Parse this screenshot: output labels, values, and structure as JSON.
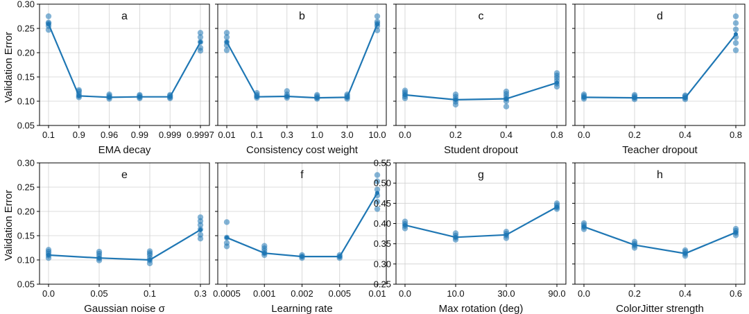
{
  "figure": {
    "shared_ylabel": "Validation Error",
    "series_color": "#1f77b4",
    "point_color": "#1f77b4"
  },
  "chart_data": [
    {
      "panel": "a",
      "type": "line",
      "xlabel": "EMA decay",
      "categories": [
        "0.1",
        "0.9",
        "0.96",
        "0.99",
        "0.999",
        "0.9997"
      ],
      "values": [
        0.259,
        0.111,
        0.108,
        0.109,
        0.109,
        0.222
      ],
      "runs": [
        [
          0.247,
          0.255,
          0.26,
          0.262,
          0.275
        ],
        [
          0.108,
          0.111,
          0.115,
          0.12,
          0.123
        ],
        [
          0.105,
          0.108,
          0.111,
          0.114
        ],
        [
          0.106,
          0.108,
          0.111,
          0.113
        ],
        [
          0.106,
          0.108,
          0.111,
          0.113
        ],
        [
          0.204,
          0.21,
          0.222,
          0.232,
          0.241
        ]
      ],
      "ylim": [
        0.05,
        0.3
      ],
      "yticks": [
        "0.05",
        "0.10",
        "0.15",
        "0.20",
        "0.25",
        "0.30"
      ],
      "grid": true
    },
    {
      "panel": "b",
      "type": "line",
      "xlabel": "Consistency cost weight",
      "categories": [
        "0.01",
        "0.1",
        "0.3",
        "1.0",
        "3.0",
        "10.0"
      ],
      "values": [
        0.222,
        0.109,
        0.11,
        0.107,
        0.108,
        0.259
      ],
      "runs": [
        [
          0.205,
          0.215,
          0.222,
          0.232,
          0.241
        ],
        [
          0.107,
          0.11,
          0.113,
          0.117
        ],
        [
          0.107,
          0.11,
          0.114,
          0.121
        ],
        [
          0.105,
          0.107,
          0.11,
          0.113
        ],
        [
          0.105,
          0.108,
          0.111,
          0.114
        ],
        [
          0.246,
          0.255,
          0.26,
          0.264,
          0.275
        ]
      ],
      "ylim": [
        0.05,
        0.3
      ],
      "yticks": [],
      "grid": true
    },
    {
      "panel": "c",
      "type": "line",
      "xlabel": "Student dropout",
      "categories": [
        "0.0",
        "0.2",
        "0.4",
        "0.8"
      ],
      "values": [
        0.113,
        0.103,
        0.105,
        0.138
      ],
      "runs": [
        [
          0.106,
          0.11,
          0.114,
          0.118,
          0.122
        ],
        [
          0.093,
          0.099,
          0.104,
          0.109,
          0.114
        ],
        [
          0.089,
          0.1,
          0.105,
          0.11,
          0.115,
          0.12
        ],
        [
          0.13,
          0.136,
          0.142,
          0.148,
          0.153,
          0.158
        ]
      ],
      "ylim": [
        0.05,
        0.3
      ],
      "yticks": [],
      "grid": true
    },
    {
      "panel": "d",
      "type": "line",
      "xlabel": "Teacher dropout",
      "categories": [
        "0.0",
        "0.2",
        "0.4",
        "0.8"
      ],
      "values": [
        0.108,
        0.107,
        0.107,
        0.238
      ],
      "runs": [
        [
          0.105,
          0.108,
          0.111,
          0.114
        ],
        [
          0.104,
          0.107,
          0.11,
          0.113
        ],
        [
          0.104,
          0.107,
          0.11,
          0.112
        ],
        [
          0.205,
          0.22,
          0.232,
          0.248,
          0.261,
          0.275
        ]
      ],
      "ylim": [
        0.05,
        0.3
      ],
      "yticks": [],
      "grid": true
    },
    {
      "panel": "e",
      "type": "line",
      "xlabel": "Gaussian noise σ",
      "categories": [
        "0.0",
        "0.05",
        "0.1",
        "0.3"
      ],
      "values": [
        0.11,
        0.104,
        0.1,
        0.162
      ],
      "runs": [
        [
          0.104,
          0.109,
          0.113,
          0.117,
          0.121
        ],
        [
          0.099,
          0.103,
          0.108,
          0.113,
          0.117
        ],
        [
          0.093,
          0.099,
          0.104,
          0.11,
          0.114,
          0.118
        ],
        [
          0.144,
          0.152,
          0.163,
          0.172,
          0.18,
          0.188
        ]
      ],
      "ylim": [
        0.05,
        0.3
      ],
      "yticks": [
        "0.05",
        "0.10",
        "0.15",
        "0.20",
        "0.25",
        "0.30"
      ],
      "grid": true
    },
    {
      "panel": "f",
      "type": "line",
      "xlabel": "Learning rate",
      "categories": [
        "0.0005",
        "0.001",
        "0.002",
        "0.005",
        "0.01"
      ],
      "values": [
        0.146,
        0.114,
        0.107,
        0.107,
        0.238
      ],
      "runs": [
        [
          0.128,
          0.135,
          0.146,
          0.178
        ],
        [
          0.11,
          0.114,
          0.119,
          0.124,
          0.129
        ],
        [
          0.104,
          0.107,
          0.11
        ],
        [
          0.104,
          0.107,
          0.11
        ],
        [
          0.205,
          0.22,
          0.233,
          0.245,
          0.262,
          0.275
        ]
      ],
      "ylim": [
        0.05,
        0.3
      ],
      "yticks": [],
      "grid": true
    },
    {
      "panel": "g",
      "type": "line",
      "xlabel": "Max rotation (deg)",
      "categories": [
        "0.0",
        "10.0",
        "30.0",
        "90.0"
      ],
      "values": [
        0.396,
        0.366,
        0.372,
        0.441
      ],
      "runs": [
        [
          0.388,
          0.394,
          0.399,
          0.405
        ],
        [
          0.36,
          0.365,
          0.37,
          0.376
        ],
        [
          0.364,
          0.37,
          0.375,
          0.38
        ],
        [
          0.436,
          0.44,
          0.445,
          0.45
        ]
      ],
      "ylim": [
        0.25,
        0.55
      ],
      "yticks": [
        "0.25",
        "0.30",
        "0.35",
        "0.40",
        "0.45",
        "0.50",
        "0.55"
      ],
      "grid": true
    },
    {
      "panel": "h",
      "type": "line",
      "xlabel": "ColorJitter strength",
      "categories": [
        "0.0",
        "0.2",
        "0.4",
        "0.6"
      ],
      "values": [
        0.392,
        0.347,
        0.326,
        0.378
      ],
      "runs": [
        [
          0.386,
          0.391,
          0.396,
          0.401
        ],
        [
          0.34,
          0.345,
          0.35,
          0.355
        ],
        [
          0.32,
          0.325,
          0.33,
          0.334
        ],
        [
          0.371,
          0.377,
          0.382,
          0.387
        ]
      ],
      "ylim": [
        0.25,
        0.55
      ],
      "yticks": [],
      "grid": true
    }
  ]
}
